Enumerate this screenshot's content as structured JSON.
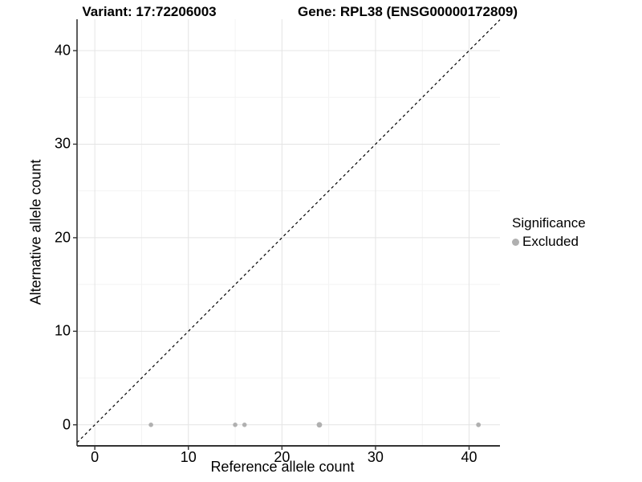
{
  "titles": {
    "variant": "Variant: 17:72206003",
    "gene": "Gene: RPL38 (ENSG00000172809)"
  },
  "legend": {
    "title": "Significance",
    "items": [
      {
        "label": "Excluded",
        "color": "#b0b0b0"
      }
    ]
  },
  "chart_data": {
    "type": "scatter",
    "title": "Variant: 17:72206003 | Gene: RPL38 (ENSG00000172809)",
    "xlabel": "Reference allele count",
    "ylabel": "Alternative allele count",
    "xlim": [
      -1.9,
      43.3
    ],
    "ylim": [
      -2.25,
      43.35
    ],
    "x_ticks": [
      0,
      10,
      20,
      30,
      40
    ],
    "y_ticks": [
      0,
      10,
      20,
      30,
      40
    ],
    "x_minor_ticks": [
      5,
      15,
      25,
      35
    ],
    "y_minor_ticks": [
      5,
      15,
      25,
      35
    ],
    "grid": true,
    "legend_position": "right",
    "identity_line": {
      "style": "dashed",
      "slope": 1,
      "intercept": 0
    },
    "series": [
      {
        "name": "Excluded",
        "color": "#b0b0b0",
        "points": [
          {
            "x": 6,
            "y": 0,
            "r": 2.8
          },
          {
            "x": 15,
            "y": 0,
            "r": 2.8
          },
          {
            "x": 16,
            "y": 0,
            "r": 2.8
          },
          {
            "x": 24,
            "y": 0,
            "r": 3.4
          },
          {
            "x": 41,
            "y": 0,
            "r": 2.9
          }
        ]
      }
    ]
  },
  "style": {
    "grid_major_color": "#e4e4e4",
    "grid_minor_color": "#f3f3f3",
    "axis_line_color": "#333333",
    "tick_color": "#333333",
    "identity_line_color": "#000000",
    "background": "#ffffff"
  }
}
